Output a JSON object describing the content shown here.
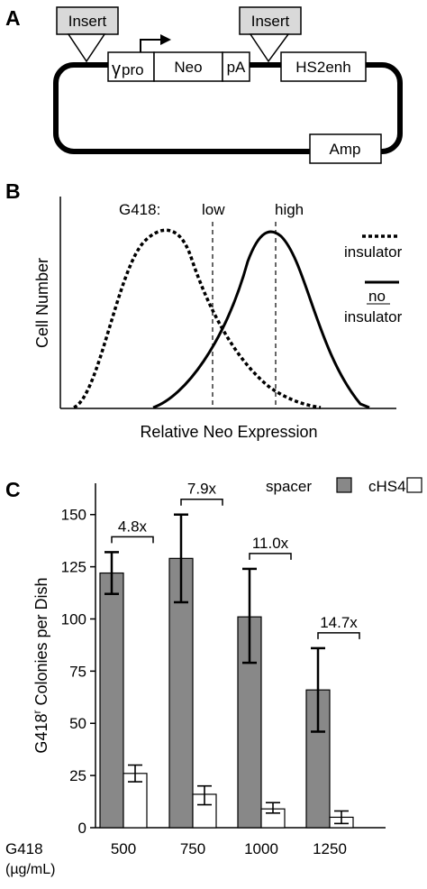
{
  "panel_a": {
    "letter": "A",
    "insert_left": "Insert",
    "insert_right": "Insert",
    "gamma_symbol": "γ",
    "pro_label": "pro",
    "neo_label": "Neo",
    "pa_label": "pA",
    "hs2enh_label": "HS2enh",
    "amp_label": "Amp"
  },
  "panel_b": {
    "letter": "B",
    "g418_label": "G418:",
    "low_label": "low",
    "high_label": "high",
    "legend_insulator": "insulator",
    "legend_no": "no",
    "legend_no_insulator": "insulator",
    "ylabel": "Cell Number",
    "xlabel": "Relative Neo Expression"
  },
  "panel_c": {
    "letter": "C",
    "ylabel_pre": "G418",
    "ylabel_sup": "r",
    "ylabel_post": " Colonies per Dish",
    "xlabel_line1": "G418",
    "xlabel_line2": "(µg/mL)",
    "legend_spacer": "spacer",
    "legend_chs4": "cHS4"
  },
  "chart_data": {
    "type": "bar",
    "categories": [
      "500",
      "750",
      "1000",
      "1250"
    ],
    "series": [
      {
        "name": "spacer",
        "color": "#888888",
        "values": [
          122,
          129,
          101,
          66
        ],
        "err_low": [
          112,
          108,
          79,
          46
        ],
        "err_high": [
          132,
          150,
          124,
          86
        ]
      },
      {
        "name": "cHS4",
        "color": "#ffffff",
        "values": [
          26,
          16,
          9,
          5
        ],
        "err_low": [
          22,
          11,
          7,
          2
        ],
        "err_high": [
          30,
          20,
          12,
          8
        ]
      }
    ],
    "fold_labels": [
      "4.8x",
      "7.9x",
      "11.0x",
      "14.7x"
    ],
    "yticks": [
      "0",
      "25",
      "50",
      "75",
      "100",
      "125",
      "150"
    ],
    "ylim": [
      0,
      165
    ]
  }
}
